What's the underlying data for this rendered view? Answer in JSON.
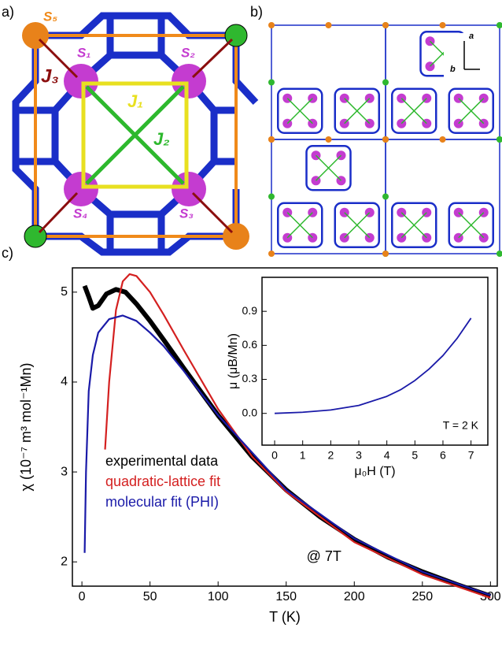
{
  "panels": {
    "a": {
      "label": "a)",
      "sites": [
        "S₁",
        "S₂",
        "S₃",
        "S₄",
        "S₅"
      ],
      "couplings": [
        "J₁",
        "J₂",
        "J₃"
      ]
    },
    "b": {
      "label": "b)",
      "axes": [
        "a",
        "b"
      ]
    },
    "c": {
      "label": "c)"
    }
  },
  "chart_data": [
    {
      "type": "line",
      "x_label": "T (K)",
      "y_label": "χ (10⁻⁷ m³ mol⁻¹Mn)",
      "xlim": [
        -7,
        305
      ],
      "xticks": [
        0,
        50,
        100,
        150,
        200,
        250,
        300
      ],
      "ylim": [
        1.73,
        5.27
      ],
      "yticks": [
        2,
        3,
        4,
        5
      ],
      "legend": "lower left",
      "annotations": [
        "@ 7T"
      ],
      "series": [
        {
          "name": "experimental data",
          "color": "#000000",
          "x": [
            2,
            5,
            8,
            12,
            18,
            25,
            32,
            40,
            50,
            60,
            75,
            100,
            125,
            150,
            175,
            200,
            225,
            250,
            275,
            300
          ],
          "values": [
            5.07,
            4.95,
            4.82,
            4.85,
            4.98,
            5.03,
            5.0,
            4.87,
            4.68,
            4.47,
            4.15,
            3.63,
            3.17,
            2.8,
            2.5,
            2.25,
            2.05,
            1.89,
            1.75,
            1.62
          ]
        },
        {
          "name": "quadratic-lattice fit",
          "color": "#d42020",
          "x": [
            17,
            20,
            25,
            30,
            35,
            40,
            50,
            60,
            75,
            100,
            125,
            150,
            200,
            250,
            300
          ],
          "values": [
            3.25,
            4.0,
            4.8,
            5.12,
            5.2,
            5.18,
            5.0,
            4.75,
            4.35,
            3.7,
            3.17,
            2.78,
            2.22,
            1.86,
            1.6
          ]
        },
        {
          "name": "molecular fit (PHI)",
          "color": "#1a1aa8",
          "x": [
            2,
            3,
            5,
            8,
            12,
            20,
            30,
            40,
            50,
            60,
            75,
            100,
            150,
            200,
            250,
            300
          ],
          "values": [
            2.1,
            3.0,
            3.9,
            4.3,
            4.55,
            4.7,
            4.74,
            4.68,
            4.55,
            4.4,
            4.12,
            3.63,
            2.8,
            2.26,
            1.89,
            1.63
          ]
        }
      ]
    },
    {
      "type": "line",
      "x_label": "μ₀H (T)",
      "y_label": "μ (μB/Mn)",
      "xlim": [
        -0.45,
        7.6
      ],
      "xticks": [
        0,
        1,
        2,
        3,
        4,
        5,
        6,
        7
      ],
      "ylim": [
        -0.28,
        1.2
      ],
      "yticks": [
        {
          "value": 0,
          "label": "0.0"
        },
        0.3,
        0.6,
        0.9
      ],
      "annotations": [
        "T = 2 K"
      ],
      "series": [
        {
          "color": "#1a1aa8",
          "x": [
            0,
            1,
            2,
            3,
            4,
            4.5,
            5,
            5.5,
            6,
            6.5,
            7
          ],
          "values": [
            0,
            0.01,
            0.03,
            0.07,
            0.15,
            0.21,
            0.29,
            0.39,
            0.51,
            0.66,
            0.84
          ]
        }
      ]
    }
  ]
}
